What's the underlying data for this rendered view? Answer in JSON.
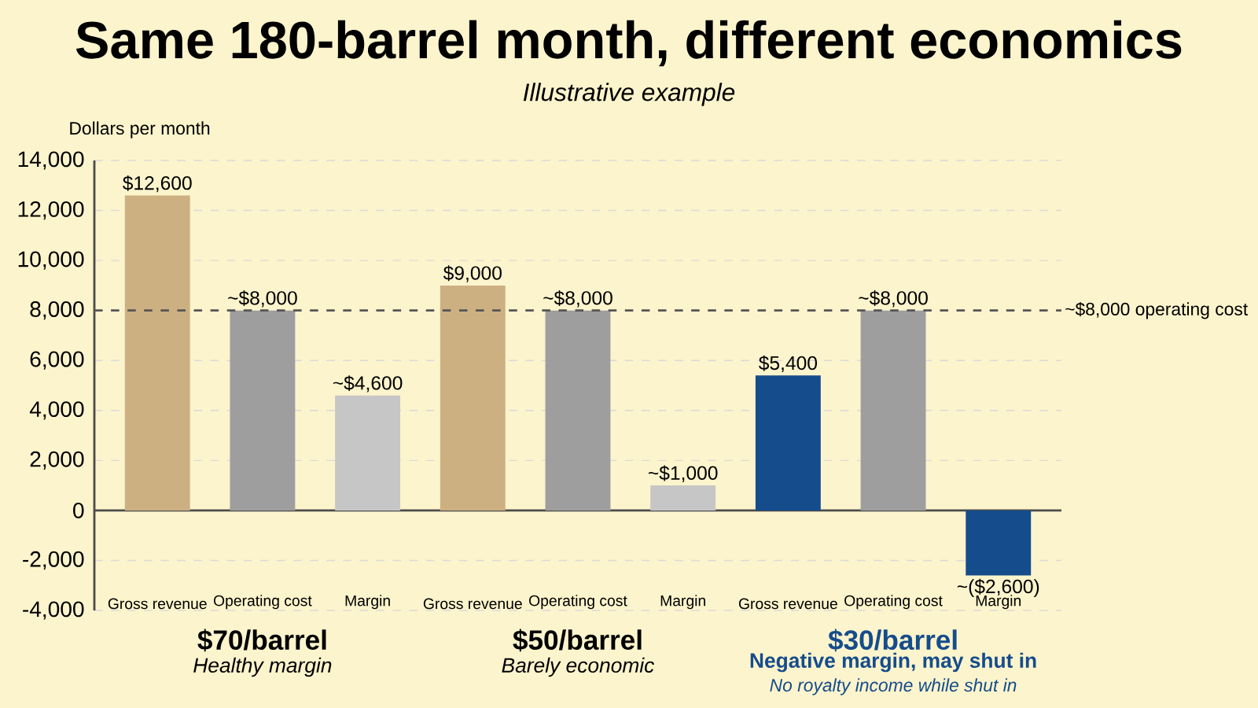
{
  "chart_data": {
    "type": "bar",
    "title": "Same 180-barrel month, different economics",
    "subtitle": "Illustrative example",
    "ylabel": "Dollars per month",
    "categories": [
      "Gross revenue",
      "Operating cost",
      "Margin",
      "Gross revenue",
      "Operating cost",
      "Margin",
      "Gross revenue",
      "Operating cost",
      "Margin"
    ],
    "values": [
      12600,
      8000,
      4600,
      9000,
      8000,
      1000,
      5400,
      8000,
      -2600
    ],
    "colors": [
      "#cdb082",
      "#9e9e9e",
      "#c6c6c6",
      "#cdb082",
      "#9e9e9e",
      "#c6c6c6",
      "#154c8c",
      "#9e9e9e",
      "#154c8c"
    ],
    "value_labels": [
      "$12,600",
      "~$8,000",
      "~$4,600",
      "$9,000",
      "~$8,000",
      "~$1,000",
      "$5,400",
      "~$8,000",
      "~($2,600)"
    ],
    "ylim": [
      -4000,
      14000
    ],
    "yticks": [
      {
        "value": -4000,
        "label": "-4,000"
      },
      {
        "value": -2000,
        "label": "-2,000"
      },
      0,
      {
        "value": 2000,
        "label": "2,000"
      },
      {
        "value": 4000,
        "label": "4,000"
      },
      {
        "value": 6000,
        "label": "6,000"
      },
      {
        "value": 8000,
        "label": "8,000"
      },
      {
        "value": 10000,
        "label": "10,000"
      },
      {
        "value": 12000,
        "label": "12,000"
      },
      {
        "value": 14000,
        "label": "14,000"
      }
    ],
    "grid": "y",
    "ref_lines": [
      {
        "axis": "y",
        "value": 8000,
        "label": "~$8,000 operating cost",
        "line_style": "dashed",
        "color": "#555555"
      }
    ],
    "annotations": [
      "$70/barrel",
      "Healthy margin",
      "$50/barrel",
      "Barely economic",
      "$30/barrel",
      "Negative margin, may shut in",
      "No royalty income while shut in"
    ]
  }
}
